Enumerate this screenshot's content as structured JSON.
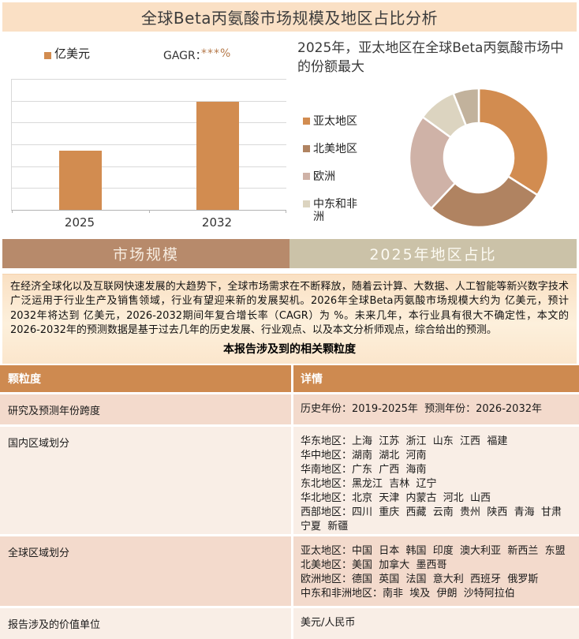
{
  "header": {
    "title": "全球Beta丙氨酸市场规模及地区占比分析"
  },
  "colors": {
    "header_bg": "#FAE0C5",
    "accent_orange": "#D28C50",
    "cagr_value_color": "#B5794A",
    "tab_left_bg": "#B78A6B",
    "tab_right_bg": "#CBC2A8",
    "table_header_bg": "#CE8A50",
    "row_dark_bg": "#F3DACC",
    "row_light_bg": "#F9EEE6",
    "gridline": "#D9D9D9"
  },
  "chart_data": [
    {
      "type": "bar",
      "title": "",
      "categories": [
        "2025",
        "2032"
      ],
      "values_masked": true,
      "values_fraction_of_axis": [
        0.452,
        0.825
      ],
      "unit_legend": "亿美元",
      "cagr_label": "GAGR：",
      "cagr_value": "***%",
      "bar_color": "#D28C50",
      "gridline_count": 6,
      "xlabel": "",
      "ylabel": "",
      "grid": true,
      "legend_position": "top-left"
    },
    {
      "type": "pie",
      "subtype": "donut",
      "title": "2025年，亚太地区在全球Beta丙氨酸市场中的份额最大",
      "segments": [
        {
          "label": "亚太地区",
          "value_pct": 34,
          "color": "#D28C50"
        },
        {
          "label": "北美地区",
          "value_pct": 28,
          "color": "#B08361"
        },
        {
          "label": "欧洲",
          "value_pct": 23,
          "color": "#CFB2A7"
        },
        {
          "label": "中东和非洲",
          "value_pct": 9,
          "color": "#DCD4C0"
        },
        {
          "label": "",
          "value_pct": 6,
          "color": "#C2B29C"
        }
      ],
      "legend_position": "left",
      "legend_visible_labels": [
        "亚太地区",
        "北美地区",
        "欧洲",
        "中东和非洲"
      ],
      "start_angle_deg": 0,
      "clockwise": true
    }
  ],
  "tabs": [
    {
      "label": "市场规模",
      "bg": "#B78A6B"
    },
    {
      "label": "2025年地区占比",
      "bg": "#CBC2A8"
    }
  ],
  "summary": {
    "paragraph": "在经济全球化以及互联网快速发展的大趋势下，全球市场需求在不断释放，随着云计算、大数据、人工智能等新兴数字技术广泛运用于行业生产及销售领域，行业有望迎来新的发展契机。2026年全球Beta丙氨酸市场规模大约为 亿美元，预计2032年将达到 亿美元，2026-2032期间年复合增长率（CAGR）为 %。未来几年，本行业具有很大不确定性，本文的2026-2032年的预测数据是基于过去几年的历史发展、行业观点、以及本文分析师观点，综合给出的预测。",
    "table_title": "本报告涉及到的相关颗粒度"
  },
  "table": {
    "headers": [
      "颗粒度",
      "详情"
    ],
    "rows": [
      {
        "label": "研究及预测年份跨度",
        "detail": "历史年份：2019-2025年  预测年份：2026-2032年",
        "shade": "dark"
      },
      {
        "label": "国内区域划分",
        "detail": "华东地区：上海  江苏  浙江  山东  江西  福建\n华中地区：湖南  湖北  河南\n华南地区：广东  广西  海南\n东北地区：黑龙江  吉林  辽宁\n华北地区：北京  天津  内蒙古  河北  山西\n西部地区：四川  重庆  西藏  云南  贵州  陕西  青海  甘肃  宁夏  新疆",
        "shade": "light"
      },
      {
        "label": "全球区域划分",
        "detail": "亚太地区：中国  日本  韩国  印度  澳大利亚  新西兰  东盟\n北美地区：美国  加拿大  墨西哥\n欧洲地区：德国  英国  法国  意大利  西班牙  俄罗斯\n中东和非洲地区：南非  埃及  伊朗  沙特阿拉伯",
        "shade": "dark"
      },
      {
        "label": "报告涉及的价值单位",
        "detail": "美元/人民币",
        "shade": "light"
      }
    ]
  }
}
